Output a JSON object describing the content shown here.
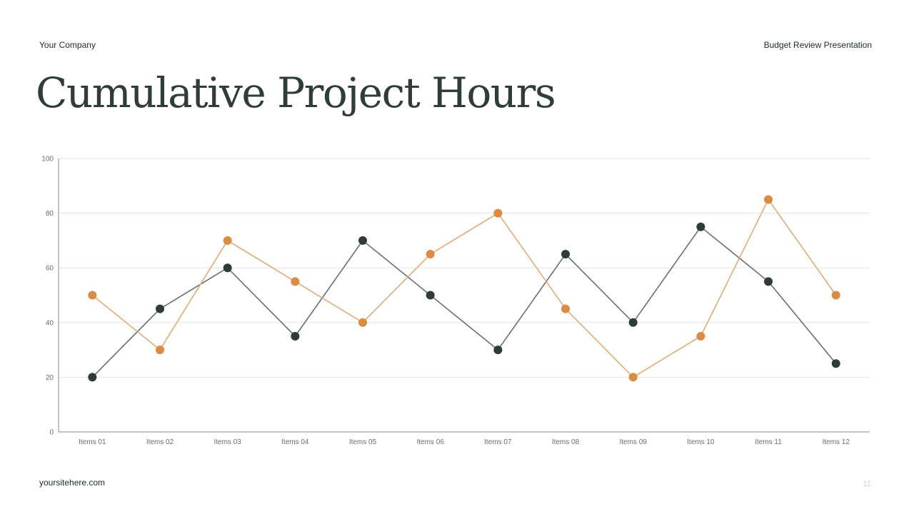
{
  "header": {
    "company": "Your Company",
    "presentation": "Budget Review Presentation"
  },
  "slide": {
    "title": "Cumulative Project Hours",
    "site": "yoursitehere.com",
    "page_number": "11"
  },
  "colors": {
    "series_dark": "#2f3c36",
    "series_dark_line": "#6b6f6d",
    "series_orange": "#d98c42",
    "series_orange_line": "#e2ab73",
    "grid": "#e3e3e3",
    "axis": "#8a8a8a"
  },
  "chart_data": {
    "type": "line",
    "categories": [
      "Items 01",
      "Items 02",
      "Items 03",
      "Items 04",
      "Items 05",
      "Items 06",
      "Items 07",
      "Items 08",
      "Items 09",
      "Items 10",
      "Items 11",
      "Items 12"
    ],
    "series": [
      {
        "values": [
          20,
          45,
          60,
          35,
          70,
          50,
          30,
          65,
          40,
          75,
          55,
          25
        ]
      },
      {
        "values": [
          50,
          30,
          70,
          55,
          40,
          65,
          80,
          45,
          20,
          35,
          85,
          50
        ]
      }
    ],
    "ylim": [
      0,
      100
    ],
    "yticks": [
      0,
      20,
      40,
      60,
      80,
      100
    ],
    "grid": true,
    "legend": "none",
    "markers": true
  }
}
